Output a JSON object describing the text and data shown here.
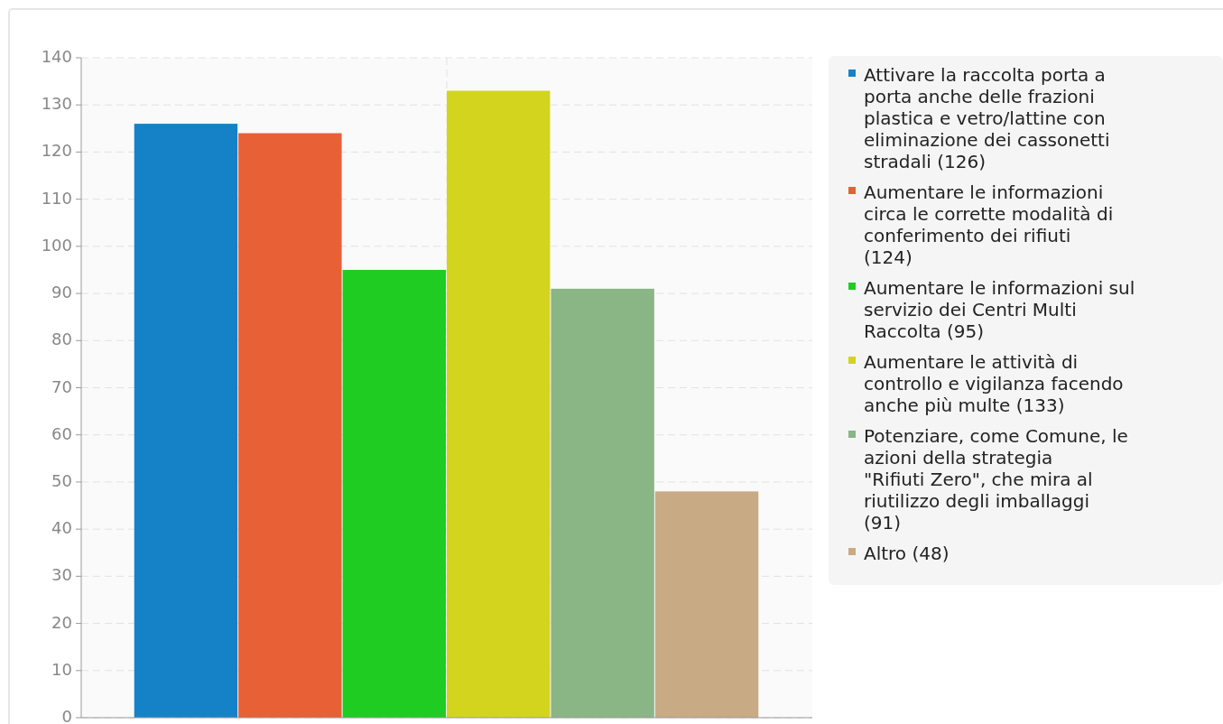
{
  "chart_data": {
    "type": "bar",
    "categories": [
      null
    ],
    "series": [
      {
        "name": "Attivare la raccolta porta a porta anche delle frazioni plastica e vetro/lattine con eliminazione dei cassonetti stradali (126)",
        "color": "#1582c8",
        "values": [
          126
        ]
      },
      {
        "name": "Aumentare le informazioni circa le corrette modalità di conferimento dei rifiuti (124)",
        "color": "#e86035",
        "values": [
          124
        ]
      },
      {
        "name": "Aumentare le informazioni sul servizio dei Centri Multi Raccolta (95)",
        "color": "#1fcc22",
        "values": [
          95
        ]
      },
      {
        "name": "Aumentare le attività di controllo e vigilanza facendo anche più multe (133)",
        "color": "#d3d41e",
        "values": [
          133
        ]
      },
      {
        "name": "Potenziare, come Comune, le azioni della strategia \"Rifiuti Zero\", che mira al riutilizzo degli imballaggi (91)",
        "color": "#8ab585",
        "values": [
          91
        ]
      },
      {
        "name": "Altro (48)",
        "color": "#c8aa84",
        "values": [
          48
        ]
      }
    ],
    "ylim": [
      0,
      140
    ],
    "yticks": [
      0,
      10,
      20,
      30,
      40,
      50,
      60,
      70,
      80,
      90,
      100,
      110,
      120,
      130,
      140
    ],
    "grid": true,
    "legend": "right"
  }
}
